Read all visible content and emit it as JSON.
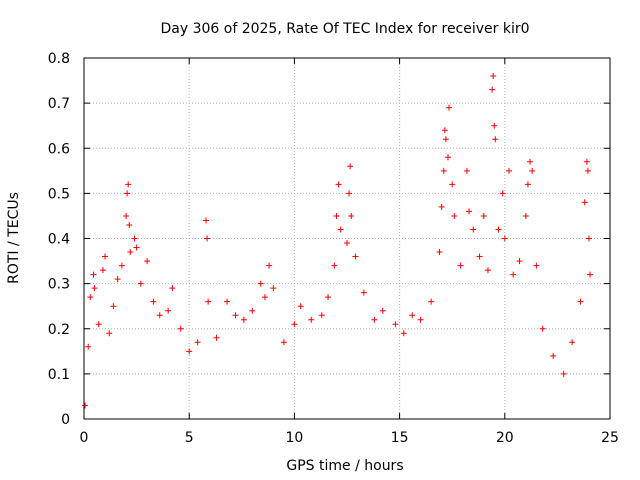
{
  "chart_data": {
    "type": "scatter",
    "title": "Day 306 of 2025, Rate Of TEC Index for receiver kir0",
    "xlabel": "GPS time / hours",
    "ylabel": "ROTI / TECUs",
    "xlim": [
      0,
      25
    ],
    "ylim": [
      0,
      0.8
    ],
    "x_ticks": [
      "0",
      "5",
      "10",
      "15",
      "20",
      "25"
    ],
    "y_ticks": [
      "0",
      "0.1",
      "0.2",
      "0.3",
      "0.4",
      "0.5",
      "0.6",
      "0.7",
      "0.8"
    ],
    "grid": true,
    "marker": "+",
    "colors": {
      "points": "#ff0000",
      "grid": "#b0b0b0",
      "axes": "#000000"
    },
    "series": [
      {
        "points": [
          [
            0.05,
            0.03
          ],
          [
            0.2,
            0.16
          ],
          [
            0.3,
            0.27
          ],
          [
            0.45,
            0.32
          ],
          [
            0.5,
            0.29
          ],
          [
            0.7,
            0.21
          ],
          [
            0.9,
            0.33
          ],
          [
            1.0,
            0.36
          ],
          [
            1.2,
            0.19
          ],
          [
            1.4,
            0.25
          ],
          [
            1.6,
            0.31
          ],
          [
            1.8,
            0.34
          ],
          [
            2.0,
            0.45
          ],
          [
            2.05,
            0.5
          ],
          [
            2.1,
            0.52
          ],
          [
            2.15,
            0.43
          ],
          [
            2.2,
            0.37
          ],
          [
            2.4,
            0.4
          ],
          [
            2.5,
            0.38
          ],
          [
            2.7,
            0.3
          ],
          [
            3.0,
            0.35
          ],
          [
            3.3,
            0.26
          ],
          [
            3.6,
            0.23
          ],
          [
            4.0,
            0.24
          ],
          [
            4.2,
            0.29
          ],
          [
            4.6,
            0.2
          ],
          [
            5.0,
            0.15
          ],
          [
            5.4,
            0.17
          ],
          [
            5.8,
            0.44
          ],
          [
            5.85,
            0.4
          ],
          [
            5.9,
            0.26
          ],
          [
            6.3,
            0.18
          ],
          [
            6.8,
            0.26
          ],
          [
            7.2,
            0.23
          ],
          [
            7.6,
            0.22
          ],
          [
            8.0,
            0.24
          ],
          [
            8.4,
            0.3
          ],
          [
            8.6,
            0.27
          ],
          [
            8.8,
            0.34
          ],
          [
            9.0,
            0.29
          ],
          [
            9.5,
            0.17
          ],
          [
            10.0,
            0.21
          ],
          [
            10.3,
            0.25
          ],
          [
            10.8,
            0.22
          ],
          [
            11.3,
            0.23
          ],
          [
            11.6,
            0.27
          ],
          [
            11.9,
            0.34
          ],
          [
            12.0,
            0.45
          ],
          [
            12.1,
            0.52
          ],
          [
            12.2,
            0.42
          ],
          [
            12.5,
            0.39
          ],
          [
            12.6,
            0.5
          ],
          [
            12.65,
            0.56
          ],
          [
            12.7,
            0.45
          ],
          [
            12.9,
            0.36
          ],
          [
            13.3,
            0.28
          ],
          [
            13.8,
            0.22
          ],
          [
            14.2,
            0.24
          ],
          [
            14.8,
            0.21
          ],
          [
            15.2,
            0.19
          ],
          [
            15.6,
            0.23
          ],
          [
            16.0,
            0.22
          ],
          [
            16.5,
            0.26
          ],
          [
            16.9,
            0.37
          ],
          [
            17.0,
            0.47
          ],
          [
            17.1,
            0.55
          ],
          [
            17.15,
            0.64
          ],
          [
            17.2,
            0.62
          ],
          [
            17.3,
            0.58
          ],
          [
            17.35,
            0.69
          ],
          [
            17.5,
            0.52
          ],
          [
            17.6,
            0.45
          ],
          [
            17.9,
            0.34
          ],
          [
            18.2,
            0.55
          ],
          [
            18.3,
            0.46
          ],
          [
            18.5,
            0.42
          ],
          [
            18.8,
            0.36
          ],
          [
            19.0,
            0.45
          ],
          [
            19.2,
            0.33
          ],
          [
            19.4,
            0.73
          ],
          [
            19.45,
            0.76
          ],
          [
            19.5,
            0.65
          ],
          [
            19.55,
            0.62
          ],
          [
            19.7,
            0.42
          ],
          [
            19.9,
            0.5
          ],
          [
            20.0,
            0.4
          ],
          [
            20.2,
            0.55
          ],
          [
            20.4,
            0.32
          ],
          [
            20.7,
            0.35
          ],
          [
            21.0,
            0.45
          ],
          [
            21.1,
            0.52
          ],
          [
            21.2,
            0.57
          ],
          [
            21.3,
            0.55
          ],
          [
            21.5,
            0.34
          ],
          [
            21.8,
            0.2
          ],
          [
            22.3,
            0.14
          ],
          [
            22.8,
            0.1
          ],
          [
            23.2,
            0.17
          ],
          [
            23.6,
            0.26
          ],
          [
            23.8,
            0.48
          ],
          [
            23.9,
            0.57
          ],
          [
            23.95,
            0.55
          ],
          [
            24.0,
            0.4
          ],
          [
            24.05,
            0.32
          ]
        ]
      }
    ]
  }
}
